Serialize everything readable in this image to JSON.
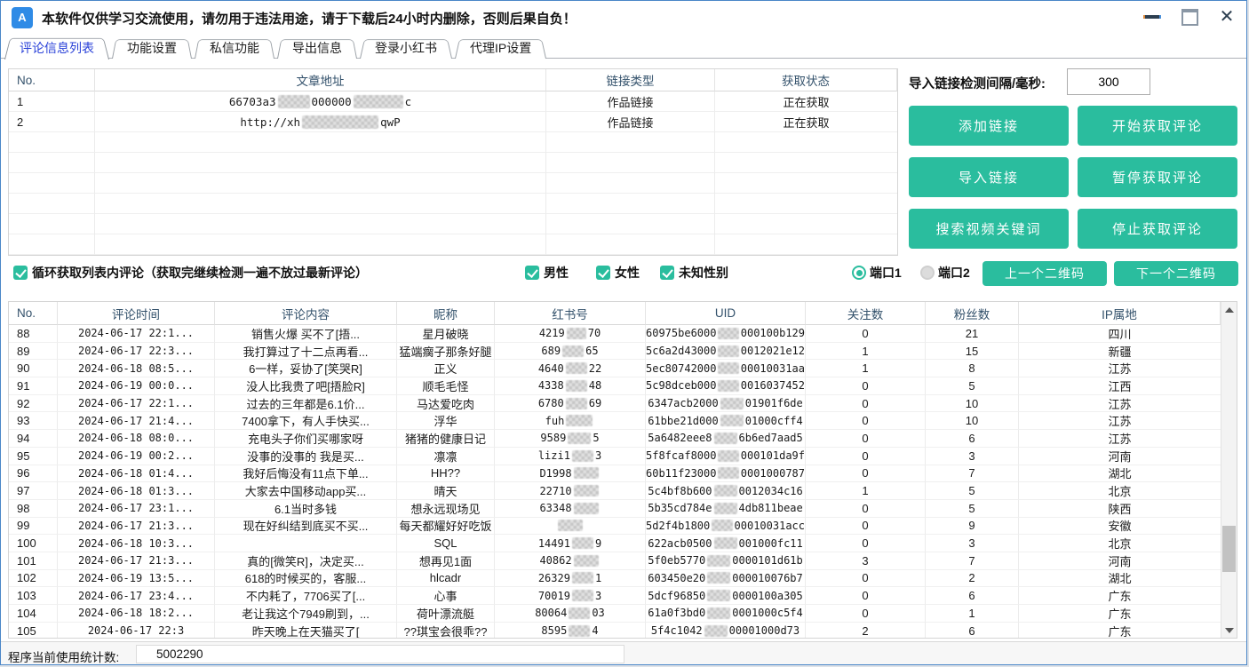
{
  "colors": {
    "accent_teal": "#2abd9e",
    "active_tab_blue": "#2840d8",
    "table_header_text": "#33516b"
  },
  "window": {
    "title": "本软件仅供学习交流使用，请勿用于违法用途，请于下载后24小时内删除，否则后果自负！"
  },
  "tabs": [
    {
      "label": "评论信息列表",
      "active": true
    },
    {
      "label": "功能设置",
      "active": false
    },
    {
      "label": "私信功能",
      "active": false
    },
    {
      "label": "导出信息",
      "active": false
    },
    {
      "label": "登录小红书",
      "active": false
    },
    {
      "label": "代理IP设置",
      "active": false
    }
  ],
  "link_panel": {
    "interval_label": "导入链接检测间隔/毫秒:",
    "interval_value": "300",
    "buttons": [
      "添加链接",
      "开始获取评论",
      "导入链接",
      "暂停获取评论",
      "搜索视频关键词",
      "停止获取评论"
    ],
    "qr_buttons": [
      "上一个二维码",
      "下一个二维码"
    ]
  },
  "upper_table": {
    "headers": [
      "No.",
      "文章地址",
      "链接类型",
      "获取状态"
    ],
    "rows": [
      {
        "no": "1",
        "url": [
          "66703a3",
          {
            "m": 36
          },
          "000000",
          {
            "m": 56
          },
          "c"
        ],
        "type": "作品链接",
        "status": "正在获取"
      },
      {
        "no": "2",
        "url": [
          "http://xh",
          {
            "m": 86
          },
          "qwP"
        ],
        "type": "作品链接",
        "status": "正在获取"
      }
    ]
  },
  "options": {
    "loop_label": "循环获取列表内评论（获取完继续检测一遍不放过最新评论）",
    "genders": [
      {
        "label": "男性",
        "checked": true
      },
      {
        "label": "女性",
        "checked": true
      },
      {
        "label": "未知性别",
        "checked": true
      }
    ],
    "ports": [
      {
        "label": "端口1",
        "selected": true
      },
      {
        "label": "端口2",
        "selected": false
      }
    ]
  },
  "lower_table": {
    "headers": [
      "No.",
      "评论时间",
      "评论内容",
      "昵称",
      "红书号",
      "UID",
      "关注数",
      "粉丝数",
      "IP属地"
    ],
    "rows": [
      [
        "88",
        "2024-06-17 22:1...",
        "销售火爆  买不了[捂...",
        "星月破晓",
        [
          "4219",
          {
            "m": 22
          },
          "70"
        ],
        [
          "60975be6000",
          {
            "m": 26
          },
          "000100b129"
        ],
        "0",
        "21",
        "四川"
      ],
      [
        "89",
        "2024-06-17 22:3...",
        "我打算过了十二点再看...",
        "猛端瘸子那条好腿",
        [
          "689",
          {
            "m": 24
          },
          "65"
        ],
        [
          "5c6a2d43000",
          {
            "m": 26
          },
          "0012021e12"
        ],
        "1",
        "15",
        "新疆"
      ],
      [
        "90",
        "2024-06-18 08:5...",
        "6一样，妥协了[笑哭R]",
        "正义",
        [
          "4640",
          {
            "m": 24
          },
          "22"
        ],
        [
          "5ec80742000",
          {
            "m": 26
          },
          "00010031aa"
        ],
        "1",
        "8",
        "江苏"
      ],
      [
        "91",
        "2024-06-19 00:0...",
        "没人比我贵了吧[捂脸R]",
        "顺毛毛怪",
        [
          "4338",
          {
            "m": 24
          },
          "48"
        ],
        [
          "5c98dceb000",
          {
            "m": 26
          },
          "0016037452"
        ],
        "0",
        "5",
        "江西"
      ],
      [
        "92",
        "2024-06-17 22:1...",
        "过去的三年都是6.1价...",
        "马达爱吃肉",
        [
          "6780",
          {
            "m": 24
          },
          "69"
        ],
        [
          "6347acb2000",
          {
            "m": 26
          },
          "01901f6de"
        ],
        "0",
        "10",
        "江苏"
      ],
      [
        "93",
        "2024-06-17 21:4...",
        "7400拿下，有人手快买...",
        "浮华",
        [
          "fuh",
          {
            "m": 30
          }
        ],
        [
          "61bbe21d000",
          {
            "m": 26
          },
          "01000cff4"
        ],
        "0",
        "10",
        "江苏"
      ],
      [
        "94",
        "2024-06-18 08:0...",
        "充电头子你们买哪家呀",
        "猪猪的健康日记",
        [
          "9589",
          {
            "m": 26
          },
          "5"
        ],
        [
          "5a6482eee8",
          {
            "m": 26
          },
          "6b6ed7aad5"
        ],
        "0",
        "6",
        "江苏"
      ],
      [
        "95",
        "2024-06-19 00:2...",
        "没事的没事的 我是买...",
        "凛凛",
        [
          "lizi1",
          {
            "m": 24
          },
          "3"
        ],
        [
          "5f8fcaf8000",
          {
            "m": 26
          },
          "000101da9f"
        ],
        "0",
        "3",
        "河南"
      ],
      [
        "96",
        "2024-06-18 01:4...",
        "我好后悔没有11点下单...",
        "HH??",
        [
          "D1998",
          {
            "m": 28
          }
        ],
        [
          "60b11f23000",
          {
            "m": 26
          },
          "0001000787"
        ],
        "0",
        "7",
        "湖北"
      ],
      [
        "97",
        "2024-06-18 01:3...",
        "大家去中国移动app买...",
        "晴天",
        [
          "22710",
          {
            "m": 28
          }
        ],
        [
          "5c4bf8b600",
          {
            "m": 26
          },
          "0012034c16"
        ],
        "1",
        "5",
        "北京"
      ],
      [
        "98",
        "2024-06-17 23:1...",
        "6.1当时多钱",
        "想永远现场见",
        [
          "63348",
          {
            "m": 28
          }
        ],
        [
          "5b35cd784e",
          {
            "m": 26
          },
          "4db811beae"
        ],
        "0",
        "5",
        "陕西"
      ],
      [
        "99",
        "2024-06-17 21:3...",
        "现在好纠结到底买不买...",
        "每天都耀好好吃饭",
        [
          {
            "m": 28
          }
        ],
        [
          "5d2f4b1800",
          {
            "m": 26
          },
          "00010031acc"
        ],
        "0",
        "9",
        "安徽"
      ],
      [
        "100",
        "2024-06-18 10:3...",
        "",
        "SQL",
        [
          "14491",
          {
            "m": 24
          },
          "9"
        ],
        [
          "622acb0500",
          {
            "m": 26
          },
          "001000fc11"
        ],
        "0",
        "3",
        "北京"
      ],
      [
        "101",
        "2024-06-17 21:3...",
        "真的[微笑R]，决定买...",
        "想再见1面",
        [
          "40862",
          {
            "m": 28
          }
        ],
        [
          "5f0eb5770",
          {
            "m": 26
          },
          "0000101d61b"
        ],
        "3",
        "7",
        "河南"
      ],
      [
        "102",
        "2024-06-19 13:5...",
        "618的时候买的，客服...",
        "hlcadr",
        [
          "26329",
          {
            "m": 24
          },
          "1"
        ],
        [
          "603450e20",
          {
            "m": 26
          },
          "000010076b7"
        ],
        "0",
        "2",
        "湖北"
      ],
      [
        "103",
        "2024-06-17 23:4...",
        "不内耗了，7706买了[...",
        "心事",
        [
          "70019",
          {
            "m": 24
          },
          "3"
        ],
        [
          "5dcf96850",
          {
            "m": 26
          },
          "0000100a305"
        ],
        "0",
        "6",
        "广东"
      ],
      [
        "104",
        "2024-06-18 18:2...",
        "老让我这个7949刷到，...",
        "荷叶漂流艇",
        [
          "80064",
          {
            "m": 24
          },
          "03"
        ],
        [
          "61a0f3bd0",
          {
            "m": 26
          },
          "0001000c5f4"
        ],
        "0",
        "1",
        "广东"
      ],
      [
        "105",
        "2024-06-17 22:3",
        "昨天晚上在天猫买了[",
        "??琪宝会很乖??",
        [
          "8595",
          {
            "m": 24
          },
          "4"
        ],
        [
          "5f4c1042",
          {
            "m": 26
          },
          "00001000d73"
        ],
        "2",
        "6",
        "广东"
      ]
    ]
  },
  "statusbar": {
    "label": "程序当前使用统计数:",
    "value": "5002290"
  }
}
